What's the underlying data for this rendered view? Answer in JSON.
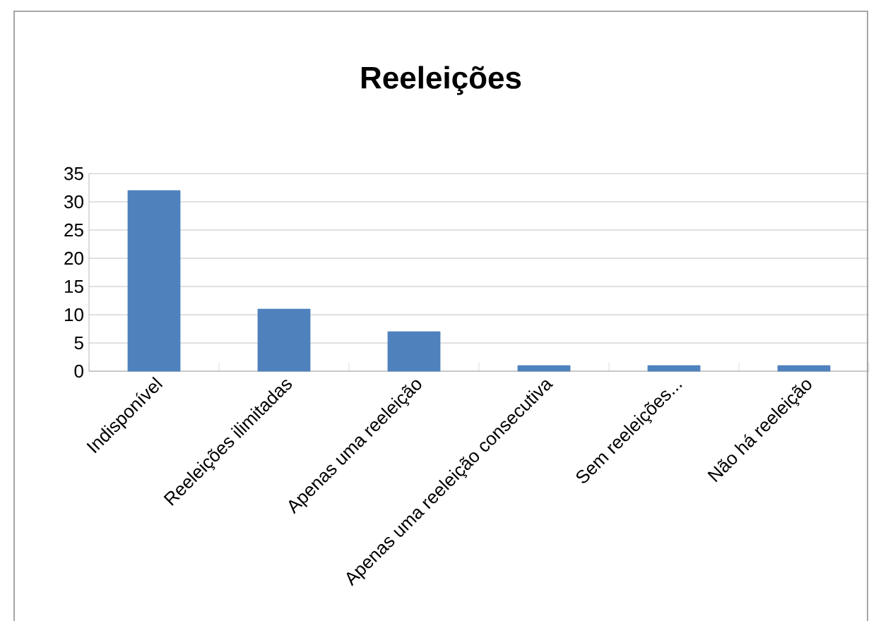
{
  "chart_data": {
    "type": "bar",
    "title": "Reeleições",
    "categories": [
      "Indisponível",
      "Reeleições ilimitadas",
      "Apenas uma reeleição",
      "Apenas uma reeleição consecutiva",
      "Sem reeleições...",
      "Não há reeleição"
    ],
    "values": [
      32,
      11,
      7,
      1,
      1,
      1
    ],
    "color": "#4f81bd",
    "ylim": [
      0,
      35
    ],
    "yticks": [
      0,
      5,
      10,
      15,
      20,
      25,
      30,
      35
    ],
    "grid": "y"
  }
}
